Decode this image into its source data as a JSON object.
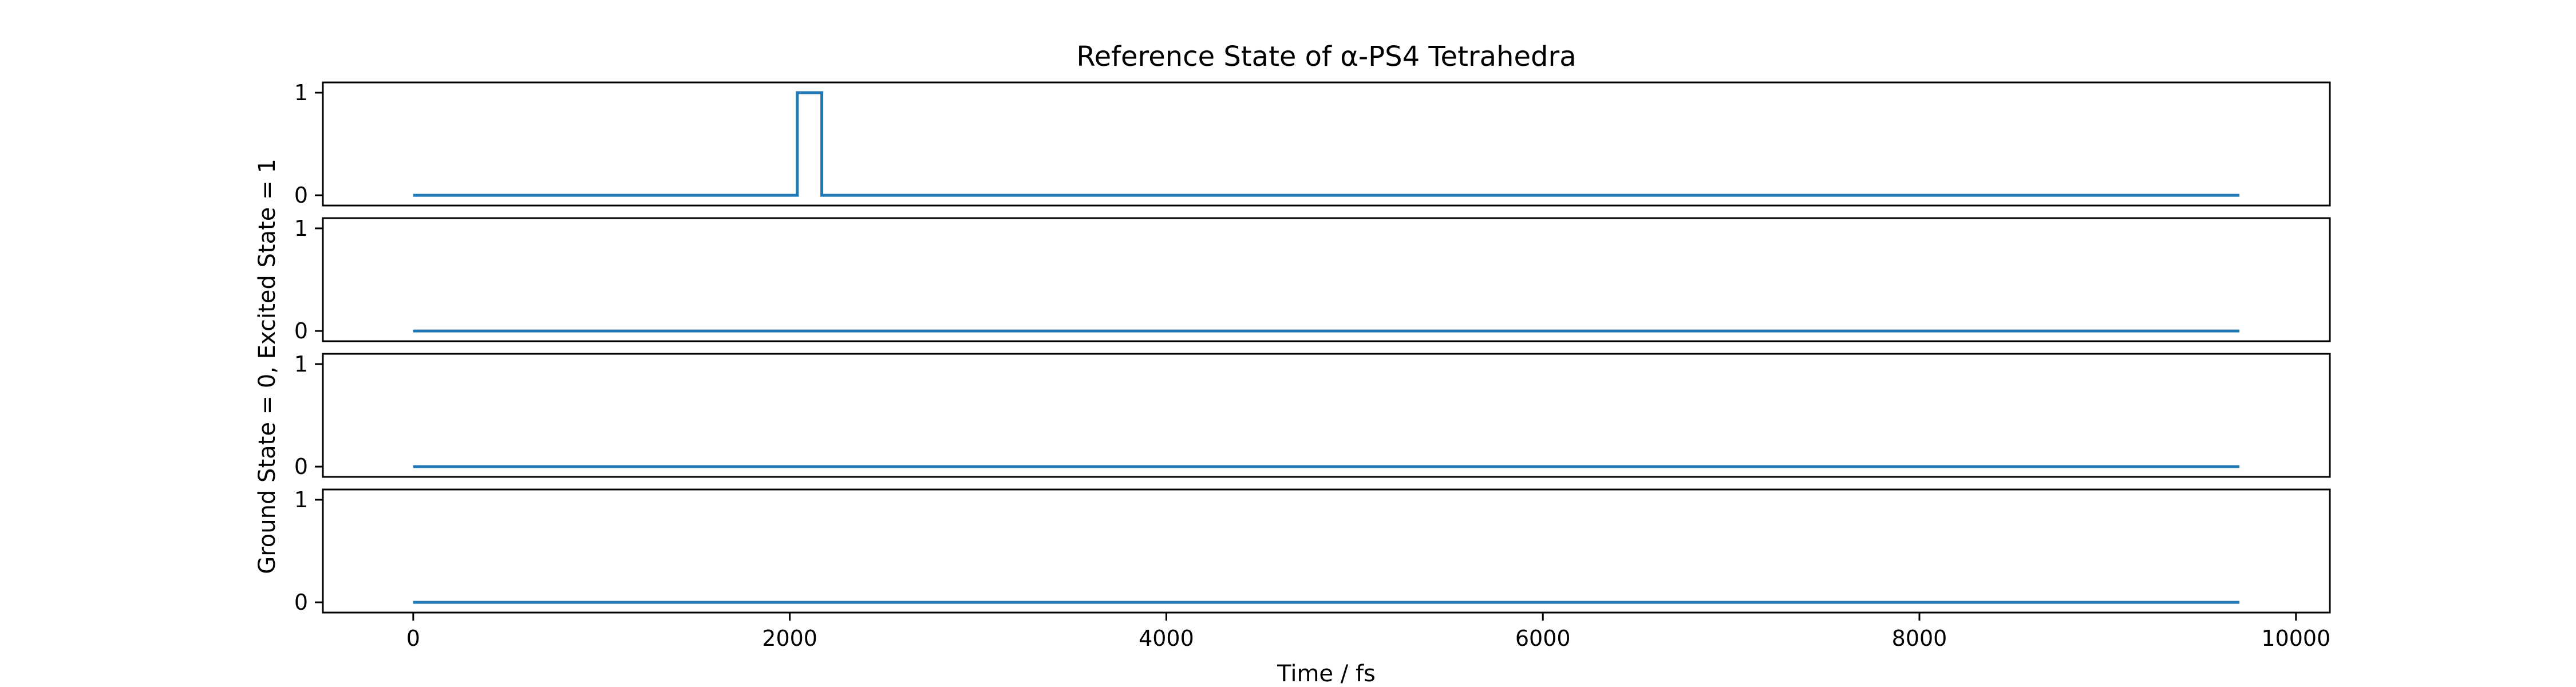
{
  "chart_data": {
    "type": "line",
    "title": "Reference State of α-PS4 Tetrahedra",
    "xlabel": "Time / fs",
    "ylabel": "Ground State = 0, Excited State = 1",
    "xlim": [
      -480,
      10180
    ],
    "ylim": [
      -0.1,
      1.1
    ],
    "x_ticks": [
      0,
      2000,
      4000,
      6000,
      8000,
      10000
    ],
    "x_tick_labels": [
      "0",
      "2000",
      "4000",
      "6000",
      "8000",
      "10000"
    ],
    "y_ticks": [
      0,
      1
    ],
    "y_tick_labels": [
      "0",
      "1"
    ],
    "grid": false,
    "legend": "none",
    "line_color": "#1f77b4",
    "panels": [
      {
        "x": [
          0,
          2040,
          2040,
          2170,
          2170,
          9700
        ],
        "y": [
          0,
          0,
          1,
          1,
          0,
          0
        ]
      },
      {
        "x": [
          0,
          9700
        ],
        "y": [
          0,
          0
        ]
      },
      {
        "x": [
          0,
          9700
        ],
        "y": [
          0,
          0
        ]
      },
      {
        "x": [
          0,
          9700
        ],
        "y": [
          0,
          0
        ]
      }
    ]
  }
}
